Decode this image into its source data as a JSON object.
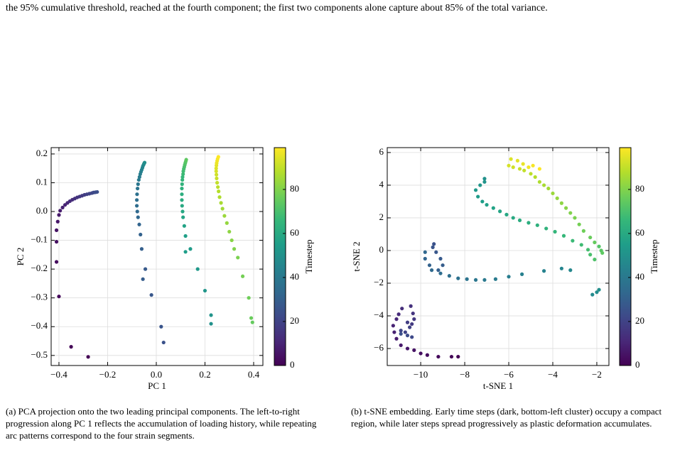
{
  "paragraph": "the 95% cumulative threshold, reached at the fourth component; the first two components alone capture about 85% of the total variance.",
  "captions": [
    "(a) PCA projection onto the two leading principal components. The left-to-right progression along PC 1 reflects the accumulation of loading history, while repeating arc patterns correspond to the four strain segments.",
    "(b) t-SNE embedding. Early time steps (dark, bottom-left cluster) occupy a compact region, while later steps spread progressively as plastic deformation accumulates."
  ],
  "chart_data": [
    {
      "type": "scatter",
      "xlabel": "PC 1",
      "ylabel": "PC 2",
      "colorbar_label": "Timestep",
      "cmap": "viridis",
      "grid": true,
      "xlim": [
        -0.432,
        0.438
      ],
      "ylim": [
        -0.535,
        0.222
      ],
      "clim": [
        0,
        99
      ],
      "xticks": [
        {
          "value": -0.4,
          "label": "−0.4"
        },
        {
          "value": -0.2,
          "label": "−0.2"
        },
        {
          "value": 0,
          "label": "0.0"
        },
        0.2,
        0.4
      ],
      "yticks": [
        {
          "value": -0.5,
          "label": "−0.5"
        },
        {
          "value": -0.4,
          "label": "−0.4"
        },
        {
          "value": -0.3,
          "label": "−0.3"
        },
        {
          "value": -0.2,
          "label": "−0.2"
        },
        {
          "value": -0.1,
          "label": "−0.1"
        },
        {
          "value": 0,
          "label": "0.0"
        },
        0.1,
        0.2
      ],
      "cticks": [
        0,
        20,
        40,
        60,
        80
      ],
      "x": [
        -0.28,
        -0.35,
        -0.4,
        -0.41,
        -0.41,
        -0.41,
        -0.405,
        -0.4,
        -0.395,
        -0.385,
        -0.375,
        -0.365,
        -0.355,
        -0.345,
        -0.335,
        -0.325,
        -0.315,
        -0.305,
        -0.295,
        -0.285,
        -0.275,
        -0.265,
        -0.258,
        -0.25,
        -0.243,
        0.03,
        0.02,
        -0.02,
        -0.045,
        -0.055,
        -0.06,
        -0.065,
        -0.07,
        -0.075,
        -0.078,
        -0.08,
        -0.08,
        -0.079,
        -0.077,
        -0.075,
        -0.072,
        -0.069,
        -0.066,
        -0.063,
        -0.06,
        -0.057,
        -0.055,
        -0.052,
        -0.05,
        -0.048,
        0.225,
        0.225,
        0.2,
        0.17,
        0.14,
        0.12,
        0.12,
        0.115,
        0.11,
        0.108,
        0.106,
        0.105,
        0.105,
        0.105,
        0.106,
        0.107,
        0.108,
        0.11,
        0.111,
        0.113,
        0.115,
        0.117,
        0.119,
        0.121,
        0.123,
        0.395,
        0.39,
        0.38,
        0.355,
        0.335,
        0.32,
        0.31,
        0.3,
        0.29,
        0.28,
        0.272,
        0.266,
        0.26,
        0.256,
        0.253,
        0.25,
        0.248,
        0.247,
        0.246,
        0.246,
        0.247,
        0.248,
        0.25,
        0.252,
        0.255
      ],
      "y": [
        -0.505,
        -0.47,
        -0.295,
        -0.175,
        -0.105,
        -0.065,
        -0.035,
        -0.012,
        0.003,
        0.014,
        0.023,
        0.03,
        0.036,
        0.041,
        0.045,
        0.049,
        0.052,
        0.055,
        0.058,
        0.06,
        0.062,
        0.064,
        0.066,
        0.067,
        0.068,
        -0.455,
        -0.4,
        -0.29,
        -0.2,
        -0.235,
        -0.13,
        -0.08,
        -0.045,
        -0.02,
        0,
        0.02,
        0.04,
        0.06,
        0.08,
        0.095,
        0.11,
        0.12,
        0.13,
        0.138,
        0.145,
        0.152,
        0.158,
        0.163,
        0.167,
        0.17,
        -0.39,
        -0.36,
        -0.275,
        -0.2,
        -0.13,
        -0.14,
        -0.085,
        -0.05,
        -0.02,
        0,
        0.02,
        0.04,
        0.06,
        0.08,
        0.095,
        0.11,
        0.12,
        0.13,
        0.14,
        0.148,
        0.155,
        0.162,
        0.168,
        0.174,
        0.18,
        -0.385,
        -0.37,
        -0.3,
        -0.225,
        -0.16,
        -0.13,
        -0.1,
        -0.07,
        -0.04,
        -0.015,
        0.01,
        0.03,
        0.05,
        0.07,
        0.085,
        0.1,
        0.115,
        0.128,
        0.14,
        0.15,
        0.16,
        0.168,
        0.176,
        0.183,
        0.19
      ],
      "c": [
        0,
        1,
        2,
        3,
        4,
        5,
        6,
        7,
        8,
        9,
        10,
        11,
        12,
        13,
        14,
        15,
        16,
        17,
        18,
        19,
        20,
        21,
        22,
        23,
        24,
        25,
        26,
        27,
        28,
        29,
        30,
        31,
        32,
        33,
        34,
        35,
        36,
        37,
        38,
        39,
        40,
        41,
        42,
        43,
        44,
        45,
        46,
        47,
        48,
        49,
        50,
        51,
        52,
        53,
        54,
        55,
        56,
        57,
        58,
        59,
        60,
        61,
        62,
        63,
        64,
        65,
        66,
        67,
        68,
        69,
        70,
        71,
        72,
        73,
        74,
        75,
        76,
        77,
        78,
        79,
        80,
        81,
        82,
        83,
        84,
        85,
        86,
        87,
        88,
        89,
        90,
        91,
        92,
        93,
        94,
        95,
        96,
        97,
        98,
        99
      ]
    },
    {
      "type": "scatter",
      "xlabel": "t-SNE 1",
      "ylabel": "t-SNE 2",
      "colorbar_label": "Timestep",
      "cmap": "viridis",
      "grid": true,
      "xlim": [
        -11.52,
        -1.45
      ],
      "ylim": [
        -7.04,
        6.3
      ],
      "clim": [
        0,
        99
      ],
      "xticks": [
        {
          "value": -10,
          "label": "−10"
        },
        {
          "value": -8,
          "label": "−8"
        },
        {
          "value": -6,
          "label": "−6"
        },
        {
          "value": -4,
          "label": "−4"
        },
        {
          "value": -2,
          "label": "−2"
        }
      ],
      "yticks": [
        {
          "value": -6,
          "label": "−6"
        },
        {
          "value": -4,
          "label": "−4"
        },
        {
          "value": -2,
          "label": "−2"
        },
        0,
        2,
        4,
        6
      ],
      "cticks": [
        0,
        20,
        40,
        60,
        80
      ],
      "x": [
        -8.3,
        -8.6,
        -9.2,
        -9.7,
        -10.0,
        -10.3,
        -10.6,
        -10.9,
        -11.1,
        -11.2,
        -11.25,
        -11.1,
        -11.0,
        -10.85,
        -10.45,
        -10.35,
        -10.3,
        -10.4,
        -10.6,
        -10.5,
        -10.7,
        -10.9,
        -10.4,
        -10.6,
        -10.9,
        -9.4,
        -9.45,
        -9.3,
        -9.1,
        -9.0,
        -9.2,
        -9.6,
        -9.8,
        -9.8,
        -9.5,
        -9.1,
        -8.7,
        -8.3,
        -7.9,
        -7.5,
        -7.1,
        -6.6,
        -6.0,
        -5.4,
        -4.4,
        -3.6,
        -3.2,
        -2.2,
        -2.0,
        -1.9,
        -7.1,
        -7.1,
        -7.3,
        -7.5,
        -7.4,
        -7.2,
        -7.0,
        -6.7,
        -6.4,
        -6.1,
        -5.8,
        -5.5,
        -5.1,
        -4.7,
        -4.3,
        -3.9,
        -3.5,
        -3.1,
        -2.7,
        -2.4,
        -2.3,
        -2.1,
        -1.9,
        -1.8,
        -1.75,
        -2.1,
        -2.3,
        -2.6,
        -2.8,
        -3.0,
        -3.2,
        -3.4,
        -3.6,
        -3.8,
        -4.0,
        -4.2,
        -4.4,
        -4.6,
        -4.8,
        -5.0,
        -5.3,
        -5.5,
        -5.8,
        -6.0,
        -5.9,
        -5.6,
        -5.35,
        -5.1,
        -4.9,
        -4.6
      ],
      "y": [
        -6.5,
        -6.5,
        -6.5,
        -6.4,
        -6.3,
        -6.1,
        -6.0,
        -5.8,
        -5.4,
        -5.0,
        -4.6,
        -4.2,
        -3.9,
        -3.55,
        -3.4,
        -3.85,
        -4.2,
        -4.5,
        -4.4,
        -4.7,
        -5.0,
        -4.9,
        -5.3,
        -5.2,
        -5.1,
        0.4,
        0.2,
        -0.1,
        -0.5,
        -0.9,
        -1.2,
        -0.9,
        -0.5,
        -0.1,
        -1.2,
        -1.4,
        -1.55,
        -1.7,
        -1.75,
        -1.8,
        -1.8,
        -1.75,
        -1.6,
        -1.45,
        -1.25,
        -1.1,
        -1.2,
        -2.7,
        -2.55,
        -2.4,
        4.4,
        4.2,
        4.0,
        3.7,
        3.3,
        3.0,
        2.8,
        2.6,
        2.4,
        2.2,
        2.0,
        1.85,
        1.7,
        1.55,
        1.35,
        1.15,
        0.9,
        0.6,
        0.35,
        0.05,
        -0.25,
        -0.55,
        0.25,
        0,
        -0.15,
        0.5,
        0.8,
        1.2,
        1.6,
        2.0,
        2.3,
        2.6,
        2.9,
        3.2,
        3.5,
        3.8,
        4.0,
        4.2,
        4.5,
        4.7,
        4.9,
        5.0,
        5.1,
        5.2,
        5.6,
        5.5,
        5.3,
        5.1,
        5.2,
        5.0
      ],
      "c": [
        0,
        1,
        2,
        3,
        4,
        5,
        6,
        7,
        8,
        9,
        10,
        11,
        12,
        13,
        14,
        15,
        16,
        17,
        18,
        19,
        20,
        21,
        22,
        23,
        24,
        25,
        26,
        27,
        28,
        29,
        30,
        31,
        32,
        33,
        34,
        35,
        36,
        37,
        38,
        39,
        40,
        41,
        42,
        43,
        44,
        45,
        46,
        47,
        48,
        49,
        50,
        51,
        52,
        53,
        54,
        55,
        56,
        57,
        58,
        59,
        60,
        61,
        62,
        63,
        64,
        65,
        66,
        67,
        68,
        69,
        70,
        71,
        72,
        73,
        74,
        75,
        76,
        77,
        78,
        79,
        80,
        81,
        82,
        83,
        84,
        85,
        86,
        87,
        88,
        89,
        90,
        91,
        92,
        93,
        94,
        95,
        96,
        97,
        98,
        99
      ]
    }
  ]
}
